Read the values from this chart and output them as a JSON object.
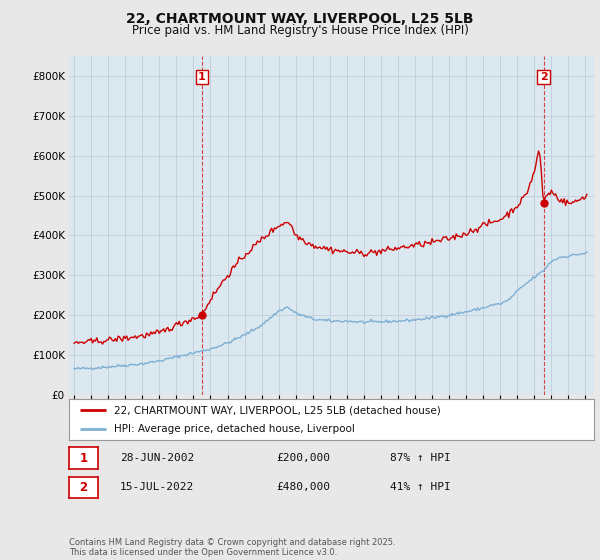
{
  "title": "22, CHARTMOUNT WAY, LIVERPOOL, L25 5LB",
  "subtitle": "Price paid vs. HM Land Registry's House Price Index (HPI)",
  "footer": "Contains HM Land Registry data © Crown copyright and database right 2025.\nThis data is licensed under the Open Government Licence v3.0.",
  "legend_line1": "22, CHARTMOUNT WAY, LIVERPOOL, L25 5LB (detached house)",
  "legend_line2": "HPI: Average price, detached house, Liverpool",
  "sale1_date": "28-JUN-2002",
  "sale1_price": "£200,000",
  "sale1_hpi": "87% ↑ HPI",
  "sale2_date": "15-JUL-2022",
  "sale2_price": "£480,000",
  "sale2_hpi": "41% ↑ HPI",
  "red_color": "#cc0000",
  "blue_color": "#7cafd4",
  "background_color": "#e8e8e8",
  "plot_bg_color": "#dce8f0",
  "grid_color": "#c0ccd8",
  "ylim": [
    0,
    850000
  ],
  "yticks": [
    0,
    100000,
    200000,
    300000,
    400000,
    500000,
    600000,
    700000,
    800000
  ],
  "sale1_x": 2002.49,
  "sale2_x": 2022.54,
  "sale1_price_val": 200000,
  "sale2_price_val": 480000
}
